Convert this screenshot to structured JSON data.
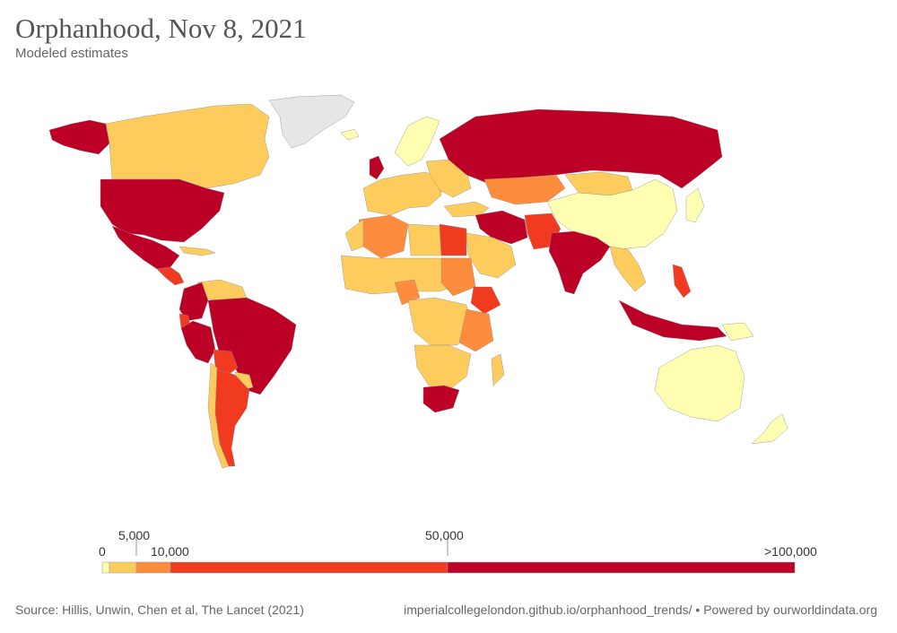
{
  "header": {
    "title": "Orphanhood, Nov 8, 2021",
    "subtitle": "Modeled estimates"
  },
  "legend": {
    "bins": [
      {
        "label": "0",
        "color": "#ffffb2"
      },
      {
        "label": "5,000",
        "color": "#fecc5c"
      },
      {
        "label": "10,000",
        "color": "#fd8d3c"
      },
      {
        "label": "50,000",
        "color": "#f03b20"
      },
      {
        "label": ">100,000",
        "color": "#bd0026"
      }
    ],
    "no_data_color": "#e6e6e6"
  },
  "colors": {
    "bin0": "#ffffb2",
    "bin1": "#fecc5c",
    "bin2": "#fd8d3c",
    "bin3": "#f03b20",
    "bin4": "#bd0026",
    "nodata": "#e6e6e6"
  },
  "footer": {
    "source": "Source: Hillis, Unwin, Chen et al, The Lancet (2021)",
    "credit": "imperialcollegelondon.github.io/orphanhood_trends/ • Powered by ourworldindata.org"
  }
}
